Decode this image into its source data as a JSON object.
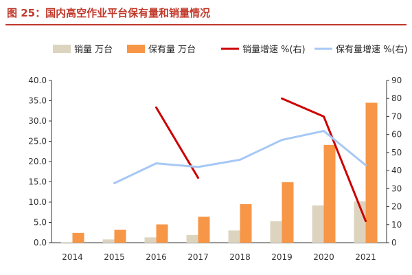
{
  "figure": {
    "title": "图 25：国内高空作业平台保有量和销量情况"
  },
  "chart_data": {
    "type": "bar",
    "categories": [
      "2014",
      "2015",
      "2016",
      "2017",
      "2018",
      "2019",
      "2020",
      "2021"
    ],
    "series": [
      {
        "name": "销量 万台",
        "type": "bar",
        "axis": "left",
        "color": "#ddd4c0",
        "values": [
          0.1,
          0.8,
          1.3,
          1.9,
          3.0,
          5.3,
          9.2,
          10.2
        ]
      },
      {
        "name": "保有量 万台",
        "type": "bar",
        "axis": "left",
        "color": "#f79646",
        "values": [
          2.4,
          3.2,
          4.5,
          6.4,
          9.5,
          14.9,
          24.1,
          34.5
        ]
      },
      {
        "name": "销量增速 %(右)",
        "type": "line",
        "axis": "right",
        "color": "#cc0000",
        "values": [
          null,
          null,
          75,
          36,
          null,
          80,
          70,
          12
        ]
      },
      {
        "name": "保有量增速 %(右)",
        "type": "line",
        "axis": "right",
        "color": "#a6c8f5",
        "values": [
          null,
          33,
          44,
          42,
          46,
          57,
          62,
          43
        ]
      }
    ],
    "ylim": [
      0,
      40
    ],
    "y_ticks": [
      "0.0",
      "5.0",
      "10.0",
      "15.0",
      "20.0",
      "25.0",
      "30.0",
      "35.0",
      "40.0"
    ],
    "y2lim": [
      0,
      90
    ],
    "y2_ticks": [
      "0",
      "10",
      "20",
      "30",
      "40",
      "50",
      "60",
      "70",
      "80",
      "90"
    ],
    "legend": "top",
    "grid": false
  }
}
